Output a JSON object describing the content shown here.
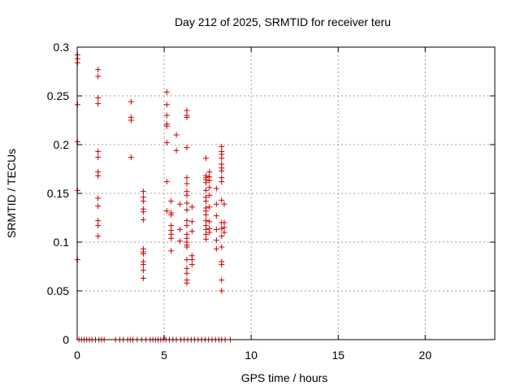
{
  "chart_data": {
    "type": "scatter",
    "title": "Day 212 of 2025, SRMTID for receiver teru",
    "xlabel": "GPS time / hours",
    "ylabel": "SRMTID / TECUs",
    "xlim": [
      0,
      24
    ],
    "ylim": [
      0,
      0.3
    ],
    "xticks": [
      0,
      5,
      10,
      15,
      20
    ],
    "yticks": [
      0,
      0.05,
      0.1,
      0.15,
      0.2,
      0.25,
      0.3
    ],
    "xtick_labels": [
      "0",
      "5",
      "10",
      "15",
      "20"
    ],
    "ytick_labels": [
      "0",
      "0.05",
      "0.1",
      "0.15",
      "0.2",
      "0.25",
      "0.3"
    ],
    "grid": true,
    "marker": "+",
    "color": "#cc0000",
    "series": [
      {
        "points": [
          [
            0.02,
            0.292
          ],
          [
            0.02,
            0.288
          ],
          [
            0.02,
            0.284
          ],
          [
            0.02,
            0.241
          ],
          [
            0.02,
            0.203
          ],
          [
            0.02,
            0.153
          ],
          [
            0.02,
            0.082
          ],
          [
            1.2,
            0.277
          ],
          [
            1.2,
            0.27
          ],
          [
            1.2,
            0.248
          ],
          [
            1.2,
            0.242
          ],
          [
            1.2,
            0.193
          ],
          [
            1.2,
            0.187
          ],
          [
            1.2,
            0.172
          ],
          [
            1.2,
            0.168
          ],
          [
            1.2,
            0.145
          ],
          [
            1.2,
            0.137
          ],
          [
            1.2,
            0.122
          ],
          [
            1.2,
            0.117
          ],
          [
            1.2,
            0.106
          ],
          [
            3.1,
            0.244
          ],
          [
            3.1,
            0.228
          ],
          [
            3.1,
            0.225
          ],
          [
            3.1,
            0.187
          ],
          [
            3.8,
            0.152
          ],
          [
            3.8,
            0.146
          ],
          [
            3.8,
            0.142
          ],
          [
            3.8,
            0.134
          ],
          [
            3.8,
            0.131
          ],
          [
            3.8,
            0.123
          ],
          [
            3.8,
            0.093
          ],
          [
            3.8,
            0.09
          ],
          [
            3.8,
            0.088
          ],
          [
            3.8,
            0.08
          ],
          [
            3.8,
            0.077
          ],
          [
            3.8,
            0.071
          ],
          [
            3.8,
            0.063
          ],
          [
            5.15,
            0.254
          ],
          [
            5.15,
            0.241
          ],
          [
            5.15,
            0.23
          ],
          [
            5.15,
            0.221
          ],
          [
            5.15,
            0.219
          ],
          [
            5.15,
            0.202
          ],
          [
            5.15,
            0.162
          ],
          [
            5.15,
            0.132
          ],
          [
            5.4,
            0.142
          ],
          [
            5.4,
            0.13
          ],
          [
            5.4,
            0.128
          ],
          [
            5.4,
            0.117
          ],
          [
            5.4,
            0.112
          ],
          [
            5.4,
            0.108
          ],
          [
            5.4,
            0.104
          ],
          [
            5.4,
            0.091
          ],
          [
            5.7,
            0.21
          ],
          [
            5.7,
            0.194
          ],
          [
            5.9,
            0.139
          ],
          [
            5.9,
            0.113
          ],
          [
            5.9,
            0.101
          ],
          [
            6.3,
            0.235
          ],
          [
            6.3,
            0.23
          ],
          [
            6.3,
            0.228
          ],
          [
            6.3,
            0.197
          ],
          [
            6.3,
            0.166
          ],
          [
            6.3,
            0.16
          ],
          [
            6.3,
            0.152
          ],
          [
            6.3,
            0.148
          ],
          [
            6.3,
            0.14
          ],
          [
            6.3,
            0.133
          ],
          [
            6.3,
            0.122
          ],
          [
            6.3,
            0.117
          ],
          [
            6.3,
            0.108
          ],
          [
            6.3,
            0.104
          ],
          [
            6.3,
            0.1
          ],
          [
            6.3,
            0.097
          ],
          [
            6.3,
            0.095
          ],
          [
            6.3,
            0.082
          ],
          [
            6.3,
            0.073
          ],
          [
            6.3,
            0.068
          ],
          [
            6.3,
            0.061
          ],
          [
            6.3,
            0.058
          ],
          [
            6.6,
            0.136
          ],
          [
            6.6,
            0.121
          ],
          [
            6.6,
            0.111
          ],
          [
            6.6,
            0.086
          ],
          [
            6.6,
            0.082
          ],
          [
            6.6,
            0.077
          ],
          [
            7.4,
            0.186
          ],
          [
            7.4,
            0.168
          ],
          [
            7.4,
            0.166
          ],
          [
            7.4,
            0.164
          ],
          [
            7.4,
            0.161
          ],
          [
            7.4,
            0.153
          ],
          [
            7.4,
            0.146
          ],
          [
            7.4,
            0.142
          ],
          [
            7.4,
            0.135
          ],
          [
            7.4,
            0.132
          ],
          [
            7.4,
            0.128
          ],
          [
            7.4,
            0.122
          ],
          [
            7.4,
            0.117
          ],
          [
            7.4,
            0.113
          ],
          [
            7.4,
            0.108
          ],
          [
            7.4,
            0.103
          ],
          [
            7.6,
            0.172
          ],
          [
            7.6,
            0.167
          ],
          [
            7.6,
            0.163
          ],
          [
            7.6,
            0.156
          ],
          [
            7.6,
            0.148
          ],
          [
            7.6,
            0.136
          ],
          [
            7.6,
            0.121
          ],
          [
            7.6,
            0.114
          ],
          [
            7.6,
            0.11
          ],
          [
            8.0,
            0.155
          ],
          [
            8.0,
            0.139
          ],
          [
            8.0,
            0.127
          ],
          [
            8.0,
            0.113
          ],
          [
            8.0,
            0.102
          ],
          [
            8.0,
            0.093
          ],
          [
            8.3,
            0.198
          ],
          [
            8.3,
            0.193
          ],
          [
            8.3,
            0.19
          ],
          [
            8.3,
            0.186
          ],
          [
            8.3,
            0.18
          ],
          [
            8.3,
            0.176
          ],
          [
            8.3,
            0.173
          ],
          [
            8.3,
            0.166
          ],
          [
            8.3,
            0.162
          ],
          [
            8.3,
            0.143
          ],
          [
            8.3,
            0.12
          ],
          [
            8.3,
            0.114
          ],
          [
            8.3,
            0.106
          ],
          [
            8.3,
            0.095
          ],
          [
            8.3,
            0.08
          ],
          [
            8.3,
            0.077
          ],
          [
            8.3,
            0.061
          ],
          [
            8.3,
            0.05
          ],
          [
            8.45,
            0.139
          ],
          [
            8.45,
            0.12
          ],
          [
            8.45,
            0.115
          ],
          [
            8.45,
            0.11
          ],
          [
            0.1,
            0
          ],
          [
            0.25,
            0
          ],
          [
            0.4,
            0
          ],
          [
            0.55,
            0
          ],
          [
            0.7,
            0
          ],
          [
            0.85,
            0
          ],
          [
            1.05,
            0
          ],
          [
            1.25,
            0
          ],
          [
            1.4,
            0
          ],
          [
            1.55,
            0
          ],
          [
            2.2,
            0
          ],
          [
            2.45,
            0
          ],
          [
            2.65,
            0
          ],
          [
            2.9,
            0
          ],
          [
            3.05,
            0
          ],
          [
            3.2,
            0
          ],
          [
            3.45,
            0
          ],
          [
            3.7,
            0
          ],
          [
            3.95,
            0
          ],
          [
            4.2,
            0
          ],
          [
            4.35,
            0
          ],
          [
            4.5,
            0
          ],
          [
            4.65,
            0
          ],
          [
            4.8,
            0
          ],
          [
            4.95,
            0
          ],
          [
            5.1,
            0
          ],
          [
            5.3,
            0
          ],
          [
            5.5,
            0
          ],
          [
            5.7,
            0
          ],
          [
            5.95,
            0
          ],
          [
            6.15,
            0
          ],
          [
            6.35,
            0
          ],
          [
            6.55,
            0
          ],
          [
            6.75,
            0
          ],
          [
            6.95,
            0
          ],
          [
            7.15,
            0
          ],
          [
            7.35,
            0
          ],
          [
            7.55,
            0
          ],
          [
            7.75,
            0
          ],
          [
            7.95,
            0
          ],
          [
            8.15,
            0
          ],
          [
            8.3,
            0
          ],
          [
            8.5,
            0
          ],
          [
            8.8,
            0
          ]
        ]
      }
    ]
  }
}
